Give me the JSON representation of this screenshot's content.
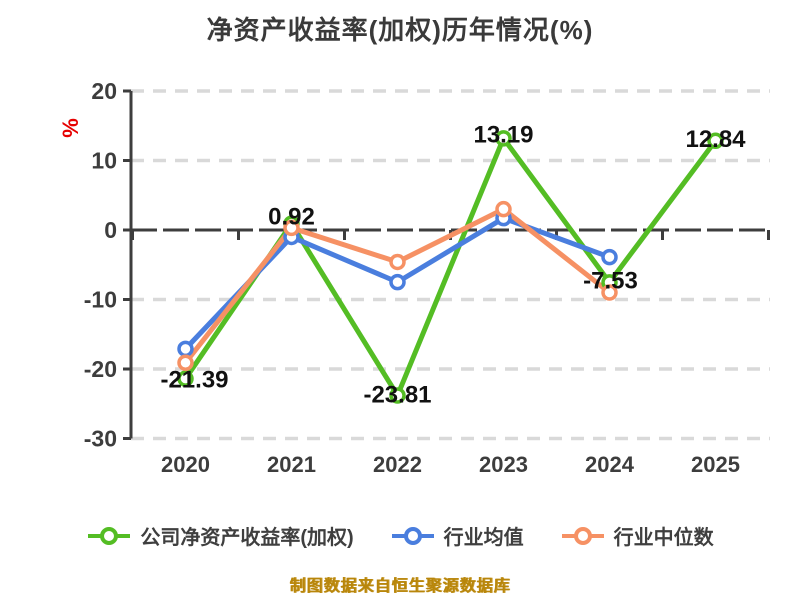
{
  "title": "净资产收益率(加权)历年情况(%)",
  "y_axis_unit_label": "%",
  "footer": "制图数据来自恒生聚源数据库",
  "colors": {
    "company": "#54bd24",
    "industry_mean": "#4a7ede",
    "industry_median": "#f69164",
    "grid": "#d9d9d9",
    "axis": "#3d3d3d",
    "tick_text": "#3d3d3d",
    "data_label": "#111111",
    "unit_label": "#e60000",
    "footer": "#b8860b",
    "marker_fill": "#ffffff"
  },
  "legend": {
    "items": [
      {
        "label": "公司净资产收益率(加权)",
        "color_key": "company"
      },
      {
        "label": "行业均值",
        "color_key": "industry_mean"
      },
      {
        "label": "行业中位数",
        "color_key": "industry_median"
      }
    ]
  },
  "chart_data": {
    "type": "line",
    "title": "净资产收益率(加权)历年情况(%)",
    "categories": [
      "2020",
      "2021",
      "2022",
      "2023",
      "2024",
      "2025"
    ],
    "xlabel": "",
    "ylabel": "%",
    "ylim": [
      -30,
      20
    ],
    "yticks": [
      20,
      10,
      0,
      -10,
      -20,
      -30
    ],
    "grid": true,
    "legend_position": "bottom",
    "series": [
      {
        "name": "公司净资产收益率(加权)",
        "color_key": "company",
        "values": [
          -21.39,
          0.92,
          -23.81,
          13.19,
          -7.53,
          12.84
        ],
        "labels": [
          "-21.39",
          "0.92",
          "-23.81",
          "13.19",
          "-7.53",
          "12.84"
        ]
      },
      {
        "name": "行业均值",
        "color_key": "industry_mean",
        "values": [
          -17.1,
          -1.0,
          -7.5,
          1.7,
          -3.9,
          null
        ],
        "labels": null
      },
      {
        "name": "行业中位数",
        "color_key": "industry_median",
        "values": [
          -19.1,
          0.3,
          -4.6,
          3.0,
          -9.0,
          null
        ],
        "labels": null
      }
    ]
  }
}
